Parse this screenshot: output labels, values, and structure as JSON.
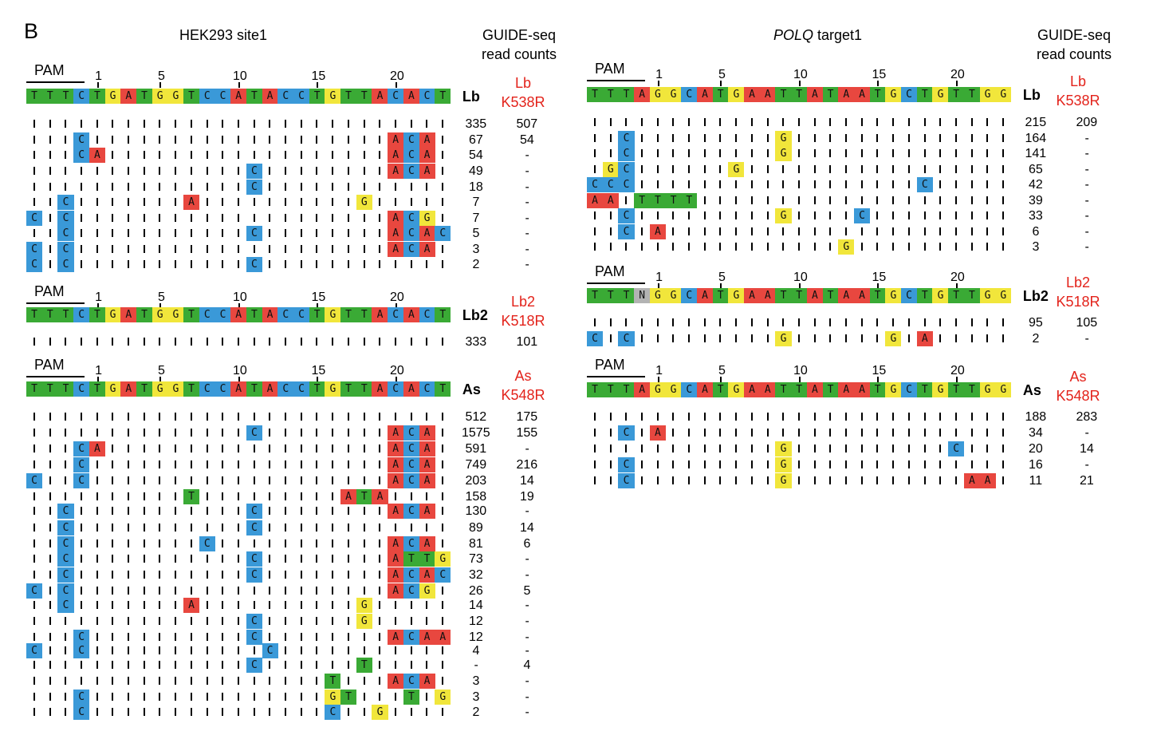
{
  "figure_letter": "B",
  "colors": {
    "T": "#3aaa35",
    "A": "#e8473f",
    "G": "#f1e63b",
    "C": "#3a99d8",
    "N": "#b3b3b3"
  },
  "pam_label": "PAM",
  "panels": [
    {
      "id": "hek",
      "title": "HEK293 site1",
      "title_italic": "",
      "counts_title": [
        "GUIDE-seq",
        "read counts"
      ],
      "sections": [
        {
          "ruler": [
            "1",
            "5",
            "10",
            "15",
            "20"
          ],
          "reference": "TTTCTGATGGTCCATACCTGTTACACT",
          "enzyme": "Lb",
          "variant": [
            "Lb",
            "K538R"
          ],
          "rows": [
            {
              "seq": "...........................",
              "wt": "335",
              "var": "507"
            },
            {
              "seq": "...C...................ACA.",
              "wt": "67",
              "var": "54"
            },
            {
              "seq": "...CA..................ACA.",
              "wt": "54",
              "var": "-"
            },
            {
              "seq": "..............C........ACA.",
              "wt": "49",
              "var": "-"
            },
            {
              "seq": "..............C............",
              "wt": "18",
              "var": "-"
            },
            {
              "seq": "..C.......A..........G.....",
              "wt": "7",
              "var": "-"
            },
            {
              "seq": "C.C....................ACG.",
              "wt": "7",
              "var": "-"
            },
            {
              "seq": "..C...........C........ACAC",
              "wt": "5",
              "var": "-"
            },
            {
              "seq": "C.C....................ACA.",
              "wt": "3",
              "var": "-"
            },
            {
              "seq": "C.C...........C............",
              "wt": "2",
              "var": "-"
            }
          ]
        },
        {
          "ruler": [
            "1",
            "5",
            "10",
            "15",
            "20"
          ],
          "reference": "TTTCTGATGGTCCATACCTGTTACACT",
          "enzyme": "Lb2",
          "variant": [
            "Lb2",
            "K518R"
          ],
          "rows": [
            {
              "seq": "...........................",
              "wt": "333",
              "var": "101"
            }
          ]
        },
        {
          "ruler": [
            "1",
            "5",
            "10",
            "15",
            "20"
          ],
          "reference": "TTTCTGATGGTCCATACCTGTTACACT",
          "enzyme": "As",
          "variant": [
            "As",
            "K548R"
          ],
          "rows": [
            {
              "seq": "...........................",
              "wt": "512",
              "var": "175"
            },
            {
              "seq": "..............C........ACA.",
              "wt": "1575",
              "var": "155"
            },
            {
              "seq": "...CA..................ACA.",
              "wt": "591",
              "var": "-"
            },
            {
              "seq": "...C...................ACA.",
              "wt": "749",
              "var": "216"
            },
            {
              "seq": "C..C...................ACA.",
              "wt": "203",
              "var": "14"
            },
            {
              "seq": "..........T.........ATA....",
              "wt": "158",
              "var": "19"
            },
            {
              "seq": "..C...........C........ACA.",
              "wt": "130",
              "var": "-"
            },
            {
              "seq": "..C...........C............",
              "wt": "89",
              "var": "14"
            },
            {
              "seq": "..C........C...........ACA.",
              "wt": "81",
              "var": "6"
            },
            {
              "seq": "..C...........C........ATTG",
              "wt": "73",
              "var": "-"
            },
            {
              "seq": "..C...........C........ACAC",
              "wt": "32",
              "var": "-"
            },
            {
              "seq": "C.C....................ACG.",
              "wt": "26",
              "var": "5"
            },
            {
              "seq": "..C.......A..........G.....",
              "wt": "14",
              "var": "-"
            },
            {
              "seq": "..............C......G.....",
              "wt": "12",
              "var": "-"
            },
            {
              "seq": "...C..........C........ACAA",
              "wt": "12",
              "var": "-"
            },
            {
              "seq": "C..C...........C...........",
              "wt": "4",
              "var": "-"
            },
            {
              "seq": "..............C......T.....",
              "wt": "-",
              "var": "4"
            },
            {
              "seq": "...................T...ACA.",
              "wt": "3",
              "var": "-"
            },
            {
              "seq": "...C...............GT...T.G",
              "wt": "3",
              "var": "-"
            },
            {
              "seq": "...C...............C..G....",
              "wt": "2",
              "var": "-"
            }
          ]
        }
      ]
    },
    {
      "id": "polq",
      "title": " target1",
      "title_italic": "POLQ",
      "counts_title": [
        "GUIDE-seq",
        "read counts"
      ],
      "sections": [
        {
          "ruler": [
            "1",
            "5",
            "10",
            "15",
            "20"
          ],
          "reference": "TTTAGGCATGAATTATAATGCTGTTGG",
          "enzyme": "Lb",
          "variant": [
            "Lb",
            "K538R"
          ],
          "rows": [
            {
              "seq": "...........................",
              "wt": "215",
              "var": "209"
            },
            {
              "seq": "..C.........G..............",
              "wt": "164",
              "var": "-"
            },
            {
              "seq": "..C.........G..............",
              "wt": "141",
              "var": "-"
            },
            {
              "seq": ".GC......G.................",
              "wt": "65",
              "var": "-"
            },
            {
              "seq": "CCC..................C.....",
              "wt": "42",
              "var": "-"
            },
            {
              "seq": "AA.TTTT....................",
              "wt": "39",
              "var": "-"
            },
            {
              "seq": "..C.........G....C.........",
              "wt": "33",
              "var": "-"
            },
            {
              "seq": "..C.A......................",
              "wt": "6",
              "var": "-"
            },
            {
              "seq": "................G..........",
              "wt": "3",
              "var": "-"
            }
          ]
        },
        {
          "ruler": [
            "1",
            "5",
            "10",
            "15",
            "20"
          ],
          "reference": "TTTNGGCATGAATTATAATGCTGTTGG",
          "enzyme": "Lb2",
          "variant": [
            "Lb2",
            "K518R"
          ],
          "rows": [
            {
              "seq": "...........................",
              "wt": "95",
              "var": "105"
            },
            {
              "seq": "C.C.........G......G.A.....",
              "wt": "2",
              "var": "-"
            }
          ]
        },
        {
          "ruler": [
            "1",
            "5",
            "10",
            "15",
            "20"
          ],
          "reference": "TTTAGGCATGAATTATAATGCTGTTGG",
          "enzyme": "As",
          "variant": [
            "As",
            "K548R"
          ],
          "rows": [
            {
              "seq": "...........................",
              "wt": "188",
              "var": "283"
            },
            {
              "seq": "..C.A......................",
              "wt": "34",
              "var": "-"
            },
            {
              "seq": "............G..........C...",
              "wt": "20",
              "var": "14"
            },
            {
              "seq": "..C.........G..............",
              "wt": "16",
              "var": "-"
            },
            {
              "seq": "..C.........G...........AA.",
              "wt": "11",
              "var": "21"
            }
          ]
        }
      ]
    }
  ]
}
